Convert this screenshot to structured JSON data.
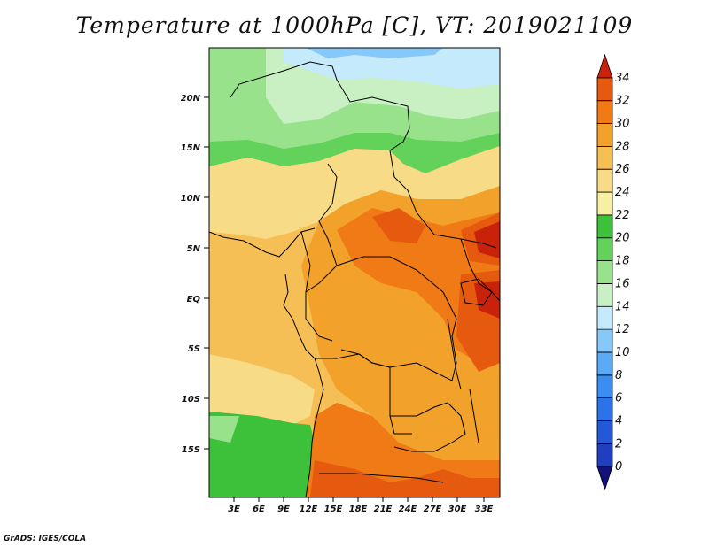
{
  "title": "Temperature at 1000hPa [C], VT: 2019021109",
  "credit": "GrADS: IGES/COLA",
  "map": {
    "lat_labels": [
      "20N",
      "15N",
      "10N",
      "5N",
      "EQ",
      "5S",
      "10S",
      "15S"
    ],
    "lon_labels": [
      "3E",
      "6E",
      "9E",
      "12E",
      "15E",
      "18E",
      "21E",
      "24E",
      "27E",
      "30E",
      "33E"
    ]
  },
  "colorbar": {
    "labels": [
      "0",
      "2",
      "4",
      "6",
      "8",
      "10",
      "12",
      "14",
      "16",
      "18",
      "20",
      "22",
      "24",
      "26",
      "28",
      "30",
      "32",
      "34"
    ],
    "colors": [
      "#12127a",
      "#1f3fbf",
      "#2458d6",
      "#2c72e8",
      "#3a8ef2",
      "#5aaaf6",
      "#86c8fa",
      "#c5eafc",
      "#c8f0c3",
      "#97e28a",
      "#62d25a",
      "#3dc03a",
      "#f6f1a2",
      "#f7db86",
      "#f6bf55",
      "#f2a12a",
      "#f07a16",
      "#e65a10",
      "#c8230a"
    ]
  }
}
